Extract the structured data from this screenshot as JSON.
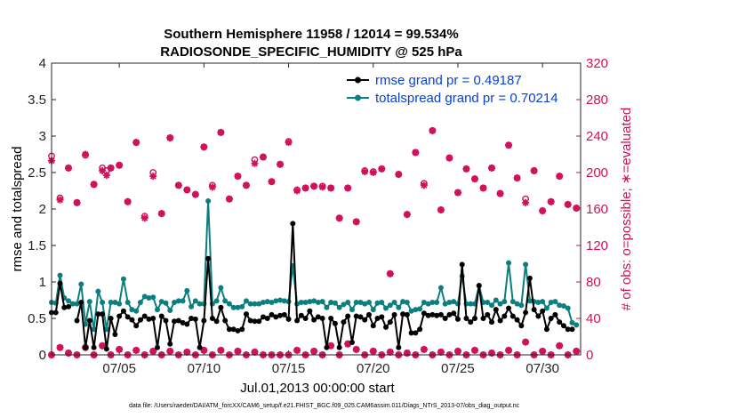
{
  "chart_data": {
    "type": "line",
    "title": "Southern Hemisphere 11958 / 12014 = 99.534%",
    "subtitle": "RADIOSONDE_SPECIFIC_HUMIDITY @ 525 hPa",
    "xlabel": "Jul.01,2013 00:00:00 start",
    "ylabel": "rmse and totalspread",
    "y2label": "# of obs: o=possible; ∗=evaluated",
    "footer": "data file: /Users/raeder/DAI/ATM_forcXX/CAM6_setup/f.e21.FHIST_BGC.f09_025.CAM6assim.011/Diags_NTrS_2013-07/obs_diag_output.nc",
    "xlim": [
      1,
      32.25
    ],
    "ylim": [
      0,
      4
    ],
    "y2lim": [
      0,
      320
    ],
    "xticks": [
      5,
      10,
      15,
      20,
      25,
      30
    ],
    "xticklabels": [
      "07/05",
      "07/10",
      "07/15",
      "07/20",
      "07/25",
      "07/30"
    ],
    "yticks": [
      0,
      0.5,
      1,
      1.5,
      2,
      2.5,
      3,
      3.5,
      4
    ],
    "yticklabels": [
      "0",
      "0.5",
      "1",
      "1.5",
      "2",
      "2.5",
      "3",
      "3.5",
      "4"
    ],
    "y2ticks": [
      0,
      40,
      80,
      120,
      160,
      200,
      240,
      280,
      320
    ],
    "y2ticklabels": [
      "0",
      "40",
      "80",
      "120",
      "160",
      "200",
      "240",
      "280",
      "320"
    ],
    "colors": {
      "rmse": "#000000",
      "spread": "#0b7f7f",
      "obs": "#d0105a",
      "legend_text": "#0a41d6"
    },
    "x": [
      1.0,
      1.25,
      1.5,
      1.75,
      2.0,
      2.25,
      2.5,
      2.75,
      3.0,
      3.25,
      3.5,
      3.75,
      4.0,
      4.25,
      4.5,
      4.75,
      5.0,
      5.25,
      5.5,
      5.75,
      6.0,
      6.25,
      6.5,
      6.75,
      7.0,
      7.25,
      7.5,
      7.75,
      8.0,
      8.25,
      8.5,
      8.75,
      9.0,
      9.25,
      9.5,
      9.75,
      10.0,
      10.25,
      10.5,
      10.75,
      11.0,
      11.25,
      11.5,
      11.75,
      12.0,
      12.25,
      12.5,
      12.75,
      13.0,
      13.25,
      13.5,
      13.75,
      14.0,
      14.25,
      14.5,
      14.75,
      15.0,
      15.25,
      15.5,
      15.75,
      16.0,
      16.25,
      16.5,
      16.75,
      17.0,
      17.25,
      17.5,
      17.75,
      18.0,
      18.25,
      18.5,
      18.75,
      19.0,
      19.25,
      19.5,
      19.75,
      20.0,
      20.25,
      20.5,
      20.75,
      21.0,
      21.25,
      21.5,
      21.75,
      22.0,
      22.25,
      22.5,
      22.75,
      23.0,
      23.25,
      23.5,
      23.75,
      24.0,
      24.25,
      24.5,
      24.75,
      25.0,
      25.25,
      25.5,
      25.75,
      26.0,
      26.25,
      26.5,
      26.75,
      27.0,
      27.25,
      27.5,
      27.75,
      28.0,
      28.25,
      28.5,
      28.75,
      29.0,
      29.25,
      29.5,
      29.75,
      30.0,
      30.25,
      30.5,
      30.75,
      31.0,
      31.25,
      31.5,
      31.75,
      32.0
    ],
    "series": [
      {
        "name": "rmse",
        "legend": "rmse grand pr = 0.49187",
        "values": [
          0.58,
          0.58,
          0.98,
          0.65,
          0.66,
          null,
          0.47,
          0.72,
          0.1,
          0.47,
          0.1,
          0.56,
          0.56,
          0.08,
          0.5,
          0.28,
          0.53,
          0.6,
          0.52,
          0.48,
          0.4,
          0.48,
          0.53,
          0.49,
          0.5,
          0.1,
          0.53,
          0.47,
          0.15,
          0.46,
          0.47,
          0.44,
          0.42,
          0.5,
          0.49,
          0.1,
          0.47,
          1.32,
          0.5,
          0.46,
          0.65,
          0.47,
          0.35,
          0.35,
          0.33,
          0.35,
          0.56,
          0.47,
          0.46,
          0.46,
          0.52,
          0.5,
          0.55,
          0.52,
          0.54,
          0.55,
          0.49,
          1.8,
          0.47,
          0.54,
          0.5,
          0.6,
          0.48,
          0.52,
          0.5,
          0.1,
          0.5,
          0.43,
          0.1,
          0.45,
          0.53,
          0.17,
          0.53,
          0.52,
          0.48,
          0.55,
          0.4,
          0.5,
          0.52,
          0.38,
          0.45,
          0.55,
          0.1,
          0.56,
          0.55,
          0.3,
          0.3,
          0.35,
          0.57,
          0.54,
          0.55,
          0.54,
          0.55,
          0.5,
          0.55,
          0.57,
          0.49,
          1.24,
          0.5,
          0.45,
          0.5,
          0.95,
          0.5,
          0.55,
          0.45,
          0.62,
          0.47,
          0.53,
          0.64,
          0.53,
          0.48,
          0.4,
          0.58,
          1.05,
          0.62,
          0.53,
          0.6,
          0.35,
          0.5,
          0.55,
          0.45,
          0.4,
          0.35,
          0.35,
          null
        ]
      },
      {
        "name": "totalspread",
        "legend": "totalspread grand pr = 0.70214",
        "values": [
          0.72,
          0.71,
          1.09,
          0.78,
          0.74,
          0.7,
          0.7,
          0.97,
          0.42,
          0.73,
          0.35,
          0.87,
          0.72,
          0.35,
          0.72,
          0.72,
          0.7,
          1.04,
          0.72,
          0.62,
          0.6,
          0.72,
          0.8,
          0.78,
          0.79,
          0.62,
          0.73,
          0.71,
          0.61,
          0.72,
          0.74,
          0.74,
          0.88,
          0.66,
          0.74,
          0.7,
          0.7,
          2.11,
          0.7,
          0.74,
          0.92,
          0.74,
          0.7,
          0.65,
          0.65,
          0.66,
          0.74,
          0.7,
          0.7,
          0.7,
          0.72,
          0.73,
          0.72,
          0.74,
          0.75,
          0.74,
          0.73,
          1.22,
          0.7,
          0.72,
          0.72,
          0.73,
          0.74,
          0.72,
          0.73,
          0.65,
          0.72,
          0.71,
          0.65,
          0.69,
          0.72,
          0.62,
          0.72,
          0.72,
          0.7,
          0.72,
          0.62,
          0.71,
          0.72,
          0.64,
          0.68,
          0.72,
          0.65,
          0.73,
          0.72,
          0.6,
          0.62,
          0.63,
          0.72,
          0.7,
          0.72,
          0.72,
          0.92,
          0.7,
          0.72,
          0.73,
          0.7,
          1.08,
          0.7,
          0.7,
          0.7,
          0.95,
          0.72,
          0.72,
          0.68,
          0.75,
          0.7,
          0.73,
          1.26,
          0.73,
          0.7,
          0.68,
          1.24,
          0.74,
          0.73,
          0.72,
          0.73,
          0.64,
          0.72,
          0.73,
          0.68,
          0.67,
          0.64,
          0.44,
          0.41
        ]
      }
    ],
    "obs_possible": [
      {
        "x": 1.0,
        "v": 218
      },
      {
        "x": 1.5,
        "v": 172
      },
      {
        "x": 2.0,
        "v": 205
      },
      {
        "x": 2.5,
        "v": 167
      },
      {
        "x": 3.0,
        "v": 219
      },
      {
        "x": 3.5,
        "v": 187
      },
      {
        "x": 4.0,
        "v": 205
      },
      {
        "x": 4.25,
        "v": 202
      },
      {
        "x": 4.5,
        "v": 205
      },
      {
        "x": 5.0,
        "v": 208
      },
      {
        "x": 5.5,
        "v": 168
      },
      {
        "x": 6.0,
        "v": 233
      },
      {
        "x": 6.5,
        "v": 152
      },
      {
        "x": 7.0,
        "v": 200
      },
      {
        "x": 7.5,
        "v": 155
      },
      {
        "x": 8.0,
        "v": 238
      },
      {
        "x": 8.5,
        "v": 186
      },
      {
        "x": 9.0,
        "v": 181
      },
      {
        "x": 9.5,
        "v": 176
      },
      {
        "x": 10.0,
        "v": 228
      },
      {
        "x": 10.5,
        "v": 186
      },
      {
        "x": 11.0,
        "v": 244
      },
      {
        "x": 11.5,
        "v": 171
      },
      {
        "x": 12.0,
        "v": 196
      },
      {
        "x": 12.5,
        "v": 186
      },
      {
        "x": 13.0,
        "v": 214
      },
      {
        "x": 13.5,
        "v": 217
      },
      {
        "x": 14.0,
        "v": 190
      },
      {
        "x": 14.5,
        "v": 209
      },
      {
        "x": 15.0,
        "v": 234
      },
      {
        "x": 15.5,
        "v": 181
      },
      {
        "x": 16.0,
        "v": 183
      },
      {
        "x": 16.5,
        "v": 185
      },
      {
        "x": 17.0,
        "v": 185
      },
      {
        "x": 17.5,
        "v": 183
      },
      {
        "x": 18.0,
        "v": 150
      },
      {
        "x": 18.5,
        "v": 183
      },
      {
        "x": 19.0,
        "v": 146
      },
      {
        "x": 19.5,
        "v": 202
      },
      {
        "x": 20.0,
        "v": 201
      },
      {
        "x": 20.5,
        "v": 204
      },
      {
        "x": 21.0,
        "v": 89
      },
      {
        "x": 21.5,
        "v": 198
      },
      {
        "x": 22.0,
        "v": 154
      },
      {
        "x": 22.5,
        "v": 222
      },
      {
        "x": 23.0,
        "v": 188
      },
      {
        "x": 23.5,
        "v": 246
      },
      {
        "x": 24.0,
        "v": 159
      },
      {
        "x": 24.5,
        "v": 216
      },
      {
        "x": 25.0,
        "v": 178
      },
      {
        "x": 25.5,
        "v": 204
      },
      {
        "x": 26.0,
        "v": 193
      },
      {
        "x": 26.5,
        "v": 183
      },
      {
        "x": 27.0,
        "v": 205
      },
      {
        "x": 27.5,
        "v": 177
      },
      {
        "x": 28.0,
        "v": 230
      },
      {
        "x": 28.5,
        "v": 194
      },
      {
        "x": 29.0,
        "v": 171
      },
      {
        "x": 29.5,
        "v": 202
      },
      {
        "x": 30.0,
        "v": 158
      },
      {
        "x": 30.5,
        "v": 168
      },
      {
        "x": 31.0,
        "v": 196
      },
      {
        "x": 31.5,
        "v": 165
      },
      {
        "x": 32.0,
        "v": 161
      }
    ],
    "obs_evaluated": [
      {
        "x": 1.0,
        "v": 213
      },
      {
        "x": 1.5,
        "v": 170
      },
      {
        "x": 2.0,
        "v": 205
      },
      {
        "x": 2.5,
        "v": 167
      },
      {
        "x": 3.0,
        "v": 220
      },
      {
        "x": 3.5,
        "v": 187
      },
      {
        "x": 4.0,
        "v": 202
      },
      {
        "x": 4.25,
        "v": 197
      },
      {
        "x": 4.5,
        "v": 205
      },
      {
        "x": 5.0,
        "v": 208
      },
      {
        "x": 5.5,
        "v": 168
      },
      {
        "x": 6.0,
        "v": 233
      },
      {
        "x": 6.5,
        "v": 150
      },
      {
        "x": 7.0,
        "v": 196
      },
      {
        "x": 7.5,
        "v": 155
      },
      {
        "x": 8.0,
        "v": 238
      },
      {
        "x": 8.5,
        "v": 186
      },
      {
        "x": 9.0,
        "v": 181
      },
      {
        "x": 9.5,
        "v": 176
      },
      {
        "x": 10.0,
        "v": 228
      },
      {
        "x": 10.5,
        "v": 184
      },
      {
        "x": 11.0,
        "v": 244
      },
      {
        "x": 11.5,
        "v": 171
      },
      {
        "x": 12.0,
        "v": 196
      },
      {
        "x": 12.5,
        "v": 186
      },
      {
        "x": 13.0,
        "v": 210
      },
      {
        "x": 13.5,
        "v": 217
      },
      {
        "x": 14.0,
        "v": 190
      },
      {
        "x": 14.5,
        "v": 209
      },
      {
        "x": 15.0,
        "v": 233
      },
      {
        "x": 15.5,
        "v": 180
      },
      {
        "x": 16.0,
        "v": 183
      },
      {
        "x": 16.5,
        "v": 185
      },
      {
        "x": 17.0,
        "v": 184
      },
      {
        "x": 17.5,
        "v": 183
      },
      {
        "x": 18.0,
        "v": 150
      },
      {
        "x": 18.5,
        "v": 183
      },
      {
        "x": 19.0,
        "v": 146
      },
      {
        "x": 19.5,
        "v": 201
      },
      {
        "x": 20.0,
        "v": 200
      },
      {
        "x": 20.5,
        "v": 204
      },
      {
        "x": 21.0,
        "v": 89
      },
      {
        "x": 21.5,
        "v": 198
      },
      {
        "x": 22.0,
        "v": 154
      },
      {
        "x": 22.5,
        "v": 222
      },
      {
        "x": 23.0,
        "v": 186
      },
      {
        "x": 23.5,
        "v": 246
      },
      {
        "x": 24.0,
        "v": 159
      },
      {
        "x": 24.5,
        "v": 216
      },
      {
        "x": 25.0,
        "v": 178
      },
      {
        "x": 25.5,
        "v": 204
      },
      {
        "x": 26.0,
        "v": 193
      },
      {
        "x": 26.5,
        "v": 183
      },
      {
        "x": 27.0,
        "v": 205
      },
      {
        "x": 27.5,
        "v": 177
      },
      {
        "x": 28.0,
        "v": 230
      },
      {
        "x": 28.5,
        "v": 194
      },
      {
        "x": 29.0,
        "v": 167
      },
      {
        "x": 29.5,
        "v": 202
      },
      {
        "x": 30.0,
        "v": 158
      },
      {
        "x": 30.5,
        "v": 168
      },
      {
        "x": 31.0,
        "v": 196
      },
      {
        "x": 31.5,
        "v": 165
      },
      {
        "x": 32.0,
        "v": 161
      }
    ],
    "obs_rejected": [
      {
        "x": 1.0,
        "v": 0
      },
      {
        "x": 1.5,
        "v": 8
      },
      {
        "x": 2.0,
        "v": 2
      },
      {
        "x": 2.5,
        "v": 0
      },
      {
        "x": 3.0,
        "v": 8
      },
      {
        "x": 3.5,
        "v": 0
      },
      {
        "x": 4.0,
        "v": 10
      },
      {
        "x": 4.5,
        "v": 0
      },
      {
        "x": 5.0,
        "v": 6
      },
      {
        "x": 5.5,
        "v": 0
      },
      {
        "x": 6.0,
        "v": 5
      },
      {
        "x": 6.5,
        "v": 0
      },
      {
        "x": 7.0,
        "v": 4
      },
      {
        "x": 7.5,
        "v": 0
      },
      {
        "x": 8.0,
        "v": 4
      },
      {
        "x": 8.5,
        "v": 0
      },
      {
        "x": 9.0,
        "v": 3
      },
      {
        "x": 9.5,
        "v": 0
      },
      {
        "x": 10.0,
        "v": 5
      },
      {
        "x": 10.5,
        "v": 0
      },
      {
        "x": 11.0,
        "v": 5
      },
      {
        "x": 11.5,
        "v": 0
      },
      {
        "x": 12.0,
        "v": 4
      },
      {
        "x": 12.5,
        "v": 0
      },
      {
        "x": 13.0,
        "v": 3
      },
      {
        "x": 13.5,
        "v": 0
      },
      {
        "x": 14.0,
        "v": 0
      },
      {
        "x": 14.5,
        "v": 0
      },
      {
        "x": 15.0,
        "v": 0
      },
      {
        "x": 15.5,
        "v": 5
      },
      {
        "x": 16.0,
        "v": 0
      },
      {
        "x": 16.5,
        "v": 4
      },
      {
        "x": 17.0,
        "v": 0
      },
      {
        "x": 17.5,
        "v": 10
      },
      {
        "x": 18.0,
        "v": 0
      },
      {
        "x": 18.5,
        "v": 12
      },
      {
        "x": 19.0,
        "v": 6
      },
      {
        "x": 19.5,
        "v": 0
      },
      {
        "x": 20.0,
        "v": 4
      },
      {
        "x": 20.5,
        "v": 0
      },
      {
        "x": 21.0,
        "v": 3
      },
      {
        "x": 21.5,
        "v": 0
      },
      {
        "x": 22.0,
        "v": 2
      },
      {
        "x": 22.5,
        "v": 0
      },
      {
        "x": 23.0,
        "v": 6
      },
      {
        "x": 23.5,
        "v": 0
      },
      {
        "x": 24.0,
        "v": 3
      },
      {
        "x": 24.5,
        "v": 0
      },
      {
        "x": 25.0,
        "v": 4
      },
      {
        "x": 25.5,
        "v": 0
      },
      {
        "x": 26.0,
        "v": 5
      },
      {
        "x": 26.5,
        "v": 0
      },
      {
        "x": 27.0,
        "v": 2
      },
      {
        "x": 27.5,
        "v": 0
      },
      {
        "x": 28.0,
        "v": 5
      },
      {
        "x": 28.5,
        "v": 0
      },
      {
        "x": 29.0,
        "v": 14
      },
      {
        "x": 29.5,
        "v": 0
      },
      {
        "x": 30.0,
        "v": 4
      },
      {
        "x": 30.5,
        "v": 0
      },
      {
        "x": 31.0,
        "v": 10
      },
      {
        "x": 31.5,
        "v": 0
      },
      {
        "x": 32.0,
        "v": 4
      }
    ]
  }
}
